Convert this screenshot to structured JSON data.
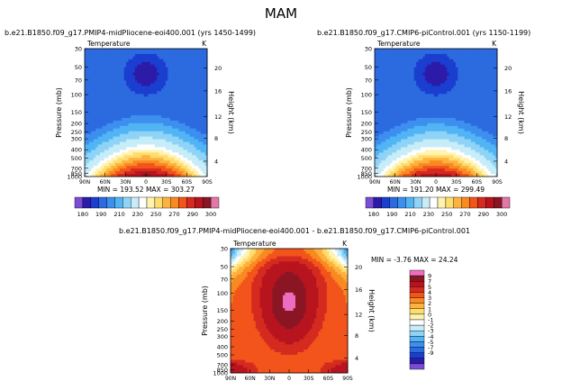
{
  "figure": {
    "title": "MAM",
    "panels": [
      {
        "id": "top-left",
        "header": "b.e21.B1850.f09_g17.PMIP4-midPliocene-eoi400.001 (yrs 1450-1499)",
        "field_label": "Temperature",
        "units": "K",
        "min_max": "MIN = 193.52   MAX = 303.27"
      },
      {
        "id": "top-right",
        "header": "b.e21.B1850.f09_g17.CMIP6-piControl.001 (yrs 1150-1199)",
        "field_label": "Temperature",
        "units": "K",
        "min_max": "MIN = 191.20   MAX = 299.49"
      },
      {
        "id": "bottom-diff",
        "header": "b.e21.B1850.f09_g17.PMIP4-midPliocene-eoi400.001 - b.e21.B1850.f09_g17.CMIP6-piControl.001",
        "field_label": "Temperature",
        "units": "K",
        "min_max": "MIN = -3.76   MAX = 24.24"
      }
    ]
  },
  "chart_data": [
    {
      "type": "heatmap",
      "title": "b.e21.B1850.f09_g17.PMIP4-midPliocene-eoi400.001 (yrs 1450-1499)",
      "field": "Temperature",
      "units": "K",
      "xlabel": "",
      "ylabel": "Pressure (mb)",
      "y2label": "Height (km)",
      "x_ticks": [
        "90N",
        "60N",
        "30N",
        "0",
        "30S",
        "60S",
        "90S"
      ],
      "y_ticks": [
        "30",
        "50",
        "70",
        "100",
        "150",
        "200",
        "250",
        "300",
        "400",
        "500",
        "700",
        "850",
        "1000"
      ],
      "y2_ticks": [
        "4",
        "8",
        "12",
        "16",
        "20"
      ],
      "min": 193.52,
      "max": 303.27,
      "colorbar_levels": [
        "180",
        "190",
        "200",
        "210",
        "220",
        "230",
        "240",
        "250",
        "260",
        "270",
        "280",
        "290",
        "300"
      ],
      "colorbar_labels": [
        "180",
        "190",
        "210",
        "230",
        "250",
        "270",
        "290",
        "300"
      ]
    },
    {
      "type": "heatmap",
      "title": "b.e21.B1850.f09_g17.CMIP6-piControl.001 (yrs 1150-1199)",
      "field": "Temperature",
      "units": "K",
      "xlabel": "",
      "ylabel": "Pressure (mb)",
      "y2label": "Height (km)",
      "x_ticks": [
        "90N",
        "60N",
        "30N",
        "0",
        "30S",
        "60S",
        "90S"
      ],
      "y_ticks": [
        "30",
        "50",
        "70",
        "100",
        "150",
        "200",
        "250",
        "300",
        "400",
        "500",
        "700",
        "850",
        "1000"
      ],
      "y2_ticks": [
        "4",
        "8",
        "12",
        "16",
        "20"
      ],
      "min": 191.2,
      "max": 299.49,
      "colorbar_levels": [
        "180",
        "190",
        "200",
        "210",
        "220",
        "230",
        "240",
        "250",
        "260",
        "270",
        "280",
        "290",
        "300"
      ],
      "colorbar_labels": [
        "180",
        "190",
        "210",
        "230",
        "250",
        "270",
        "290",
        "300"
      ]
    },
    {
      "type": "heatmap",
      "title": "b.e21.B1850.f09_g17.PMIP4-midPliocene-eoi400.001 - b.e21.B1850.f09_g17.CMIP6-piControl.001",
      "field": "Temperature",
      "units": "K",
      "xlabel": "",
      "ylabel": "Pressure (mb)",
      "y2label": "Height (km)",
      "x_ticks": [
        "90N",
        "60N",
        "30N",
        "0",
        "30S",
        "60S",
        "90S"
      ],
      "y_ticks": [
        "30",
        "50",
        "70",
        "100",
        "150",
        "200",
        "250",
        "300",
        "400",
        "500",
        "700",
        "850",
        "1000"
      ],
      "y2_ticks": [
        "4",
        "8",
        "12",
        "16",
        "20"
      ],
      "min": -3.76,
      "max": 24.24,
      "colorbar_labels": [
        "9",
        "7",
        "5",
        "4",
        "3",
        "2",
        "1",
        "0",
        "-1",
        "-2",
        "-3",
        "-4",
        "-5",
        "-7",
        "-9"
      ]
    }
  ],
  "colors": {
    "abs_scale": [
      "#7a4dd6",
      "#2c1aa8",
      "#1a3ed0",
      "#2c6ae0",
      "#3d8fef",
      "#50b4f5",
      "#8fd3f7",
      "#c7edf8",
      "#ffffff",
      "#fff3b0",
      "#fedc6e",
      "#fdb23f",
      "#f98a21",
      "#f2541b",
      "#d42a1f",
      "#b8141f",
      "#8a1624",
      "#e277a8"
    ],
    "diff_scale": [
      "#ec6ec0",
      "#8a1624",
      "#b8141f",
      "#d42a1f",
      "#f2541b",
      "#f98a21",
      "#fdb23f",
      "#fedc6e",
      "#fff3b0",
      "#ffffff",
      "#c7edf8",
      "#8fd3f7",
      "#50b4f5",
      "#3d8fef",
      "#2c6ae0",
      "#1a3ed0",
      "#2c1aa8",
      "#7a4dd6"
    ],
    "gray": "#8c8c8c"
  }
}
